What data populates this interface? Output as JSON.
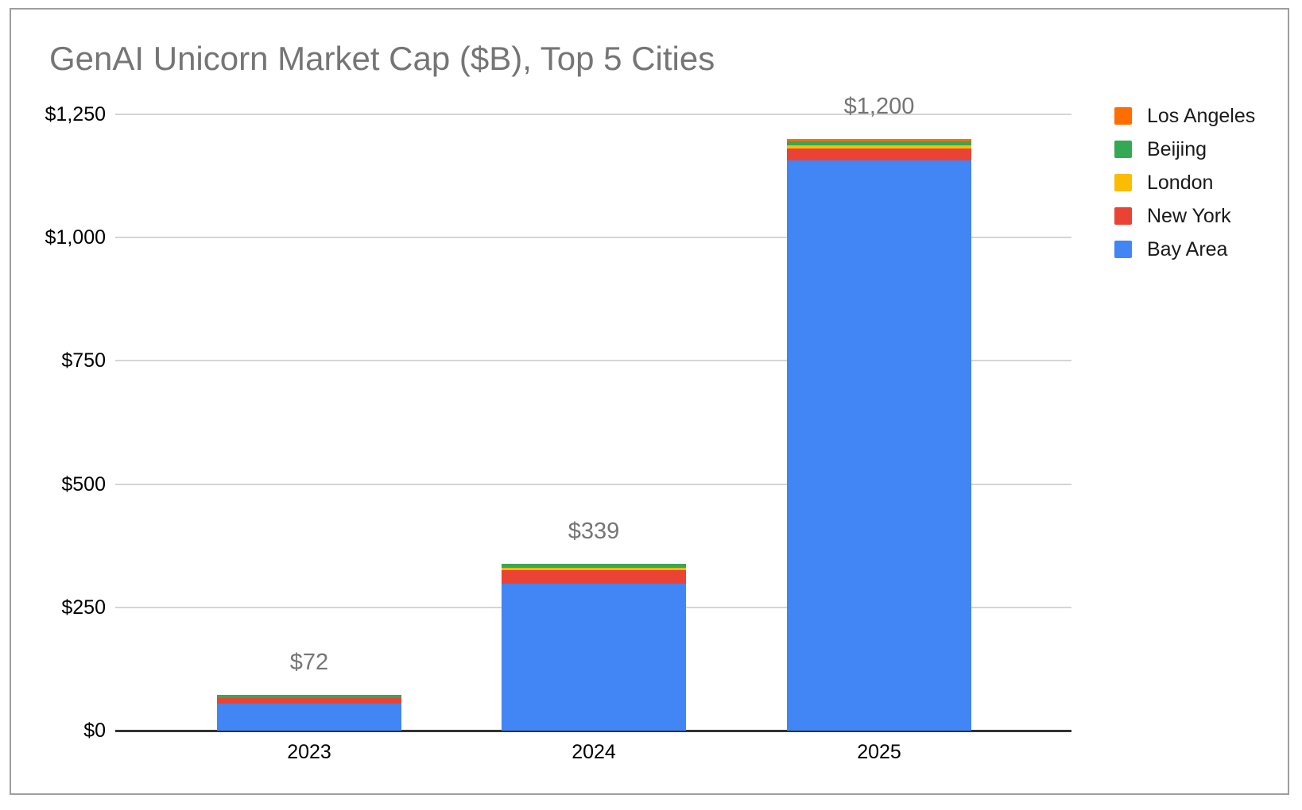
{
  "title": "GenAI Unicorn Market Cap ($B), Top 5 Cities",
  "title_color": "#757575",
  "frame": {
    "border_color": "#9e9e9e",
    "background": "#ffffff"
  },
  "chart_data": {
    "type": "bar",
    "stacked": true,
    "title": "GenAI Unicorn Market Cap ($B), Top 5 Cities",
    "categories": [
      "2023",
      "2024",
      "2025"
    ],
    "series": [
      {
        "name": "Bay Area",
        "color": "#4285F4",
        "values": [
          55,
          298,
          1157
        ]
      },
      {
        "name": "New York",
        "color": "#EA4335",
        "values": [
          11,
          28,
          23
        ]
      },
      {
        "name": "London",
        "color": "#FBBC04",
        "values": [
          0,
          5,
          7
        ]
      },
      {
        "name": "Beijing",
        "color": "#34A853",
        "values": [
          6,
          8,
          8
        ]
      },
      {
        "name": "Los Angeles",
        "color": "#FF6D01",
        "values": [
          0,
          0,
          5
        ]
      }
    ],
    "totals": [
      72,
      339,
      1200
    ],
    "total_labels": [
      "$72",
      "$339",
      "$1,200"
    ],
    "total_label_color": "#757575",
    "y_axis": {
      "min": 0,
      "max": 1250,
      "step": 250,
      "tick_labels": [
        "$0",
        "$250",
        "$500",
        "$750",
        "$1,000",
        "$1,250"
      ]
    },
    "x_axis": {
      "tick_labels": [
        "2023",
        "2024",
        "2025"
      ]
    },
    "legend": {
      "position": "right",
      "items": [
        "Los Angeles",
        "Beijing",
        "London",
        "New York",
        "Bay Area"
      ]
    },
    "grid": true,
    "gridline_color": "#d5d5d5",
    "axis_line_color": "#333333",
    "tick_label_color": "#000000"
  }
}
